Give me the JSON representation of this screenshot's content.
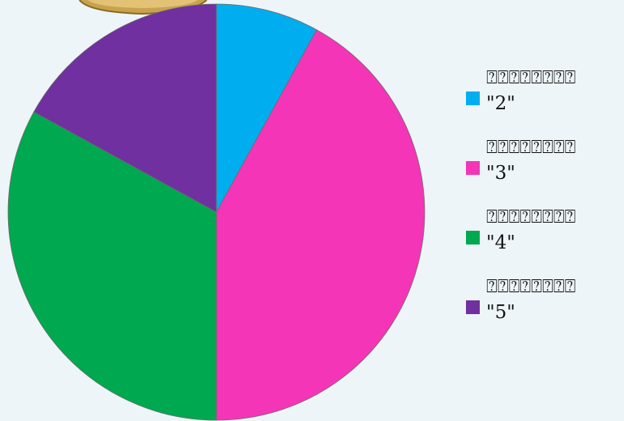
{
  "chart_data": {
    "type": "pie",
    "slices": [
      {
        "label": "⍰⍰⍰⍰⍰⍰⍰⍰\n\"2\"",
        "value": 8.0,
        "color": "#00aeef"
      },
      {
        "label": "⍰⍰⍰⍰⍰⍰⍰⍰\n\"3\"",
        "value": 42.0,
        "color": "#f535b7"
      },
      {
        "label": "⍰⍰⍰⍰⍰⍰⍰⍰\n\"4\"",
        "value": 33.0,
        "color": "#00a84f"
      },
      {
        "label": "⍰⍰⍰⍰⍰⍰⍰⍰\n\"5\"",
        "value": 17.0,
        "color": "#7030a0"
      }
    ],
    "start_angle": "top",
    "direction": "clockwise",
    "legend_position": "right"
  }
}
